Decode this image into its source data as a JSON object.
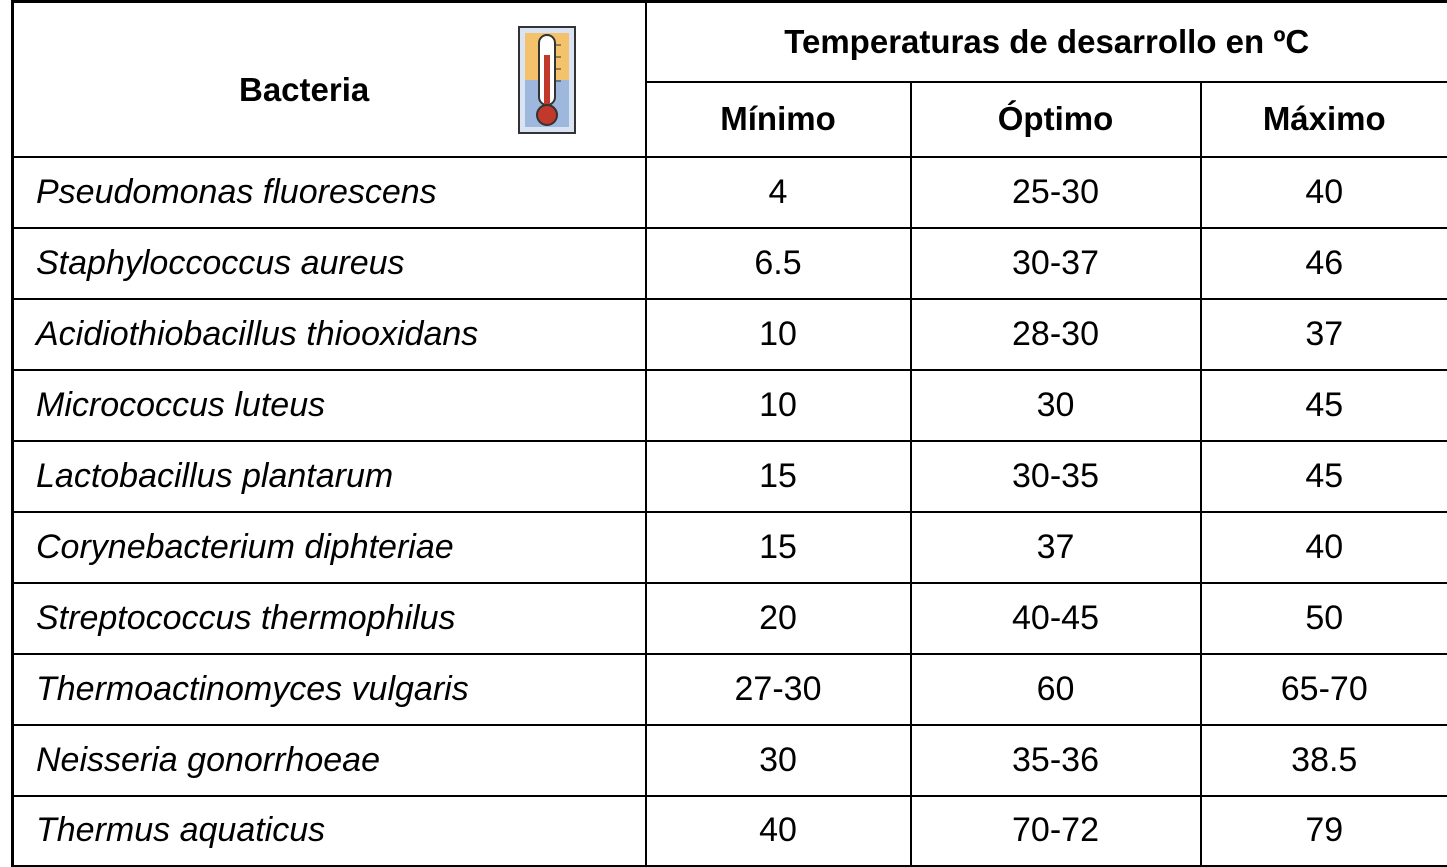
{
  "header": {
    "bacteria": "Bacteria",
    "group": "Temperaturas de desarrollo en ºC",
    "columns": [
      "Mínimo",
      "Óptimo",
      "Máximo"
    ]
  },
  "table": {
    "rows": [
      [
        "Pseudomonas fluorescens",
        "4",
        "25-30",
        "40"
      ],
      [
        "Staphyloccoccus aureus",
        "6.5",
        "30-37",
        "46"
      ],
      [
        "Acidiothiobacillus thiooxidans",
        "10",
        "28-30",
        "37"
      ],
      [
        "Micrococcus luteus",
        "10",
        "30",
        "45"
      ],
      [
        "Lactobacillus plantarum",
        "15",
        "30-35",
        "45"
      ],
      [
        "Corynebacterium diphteriae",
        "15",
        "37",
        "40"
      ],
      [
        "Streptococcus thermophilus",
        "20",
        "40-45",
        "50"
      ],
      [
        "Thermoactinomyces vulgaris",
        "27-30",
        "60",
        "65-70"
      ],
      [
        "Neisseria gonorrhoeae",
        "30",
        "35-36",
        "38.5"
      ],
      [
        "Thermus aquaticus",
        "40",
        "70-72",
        "79"
      ]
    ]
  }
}
